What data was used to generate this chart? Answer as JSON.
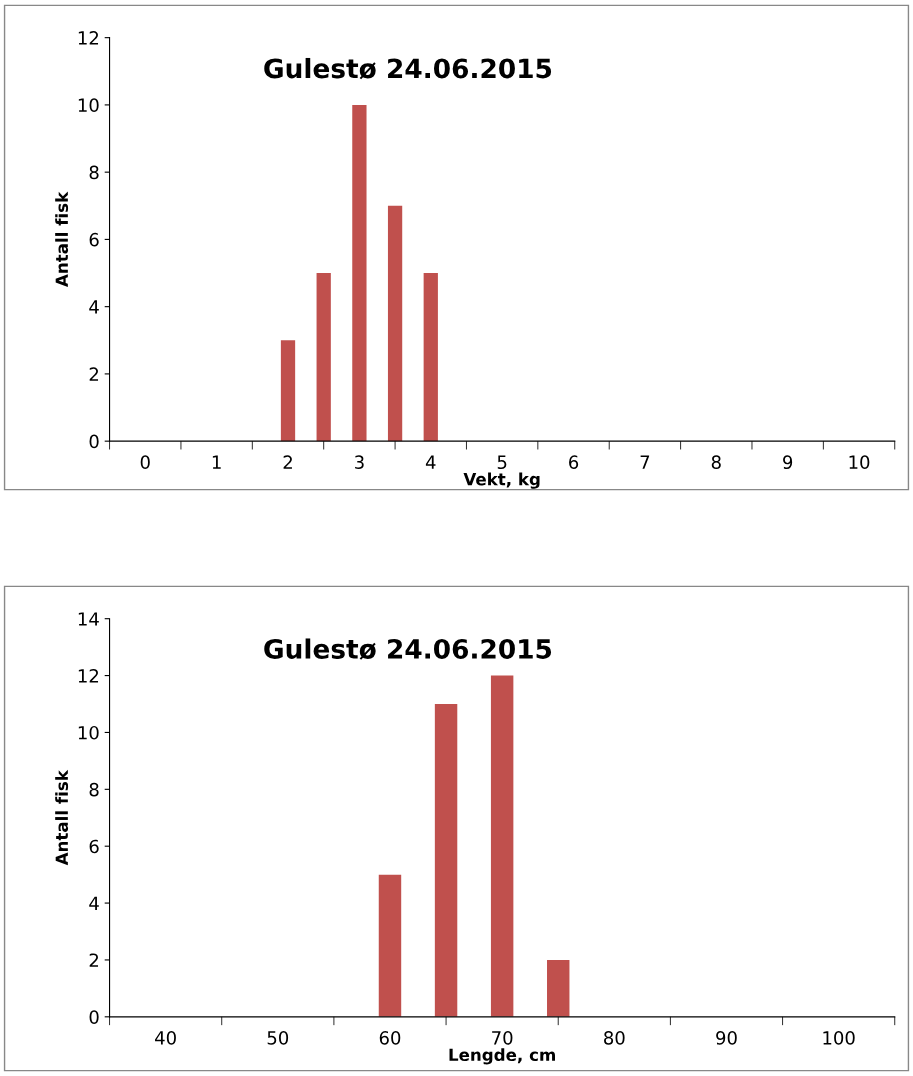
{
  "chart_data": [
    {
      "type": "bar",
      "title": "Gulestø 24.06.2015",
      "xlabel": "Vekt, kg",
      "ylabel": "Antall fisk",
      "categories": [
        "0",
        null,
        "1",
        null,
        "2",
        null,
        "3",
        null,
        "4",
        null,
        "5",
        null,
        "6",
        null,
        "7",
        null,
        "8",
        null,
        "9",
        null,
        "10"
      ],
      "values": [
        0,
        0,
        0,
        0,
        3,
        5,
        10,
        7,
        5,
        0,
        0,
        0,
        0,
        0,
        0,
        0,
        0,
        0,
        0,
        0,
        0
      ],
      "color": "#c0504d",
      "ylim": [
        0,
        12
      ],
      "yticks": [
        0,
        2,
        4,
        6,
        8,
        10,
        12
      ],
      "grid": false,
      "legend": false
    },
    {
      "type": "bar",
      "title": "Gulestø 24.06.2015",
      "xlabel": "Lengde, cm",
      "ylabel": "Antall fisk",
      "categories": [
        "40",
        null,
        "50",
        null,
        "60",
        null,
        "70",
        null,
        "80",
        null,
        "90",
        null,
        "100"
      ],
      "values": [
        0,
        0,
        0,
        0,
        5,
        11,
        12,
        2,
        0,
        0,
        0,
        0,
        0
      ],
      "color": "#c0504d",
      "ylim": [
        0,
        14
      ],
      "yticks": [
        0,
        2,
        4,
        6,
        8,
        10,
        12,
        14
      ],
      "grid": false,
      "legend": false
    }
  ]
}
